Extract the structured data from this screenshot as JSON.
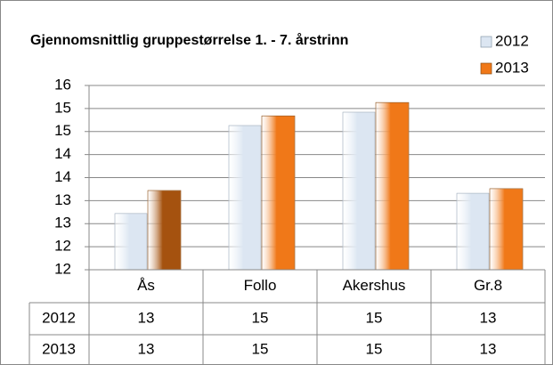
{
  "chart_data": {
    "type": "bar",
    "title": "Gjennomsnittlig gruppestørrelse 1. - 7. årstrinn",
    "categories": [
      "Ås",
      "Follo",
      "Akershus",
      "Gr.8"
    ],
    "series": [
      {
        "name": "2012",
        "color": "#dce6f2",
        "values": [
          12.72,
          14.63,
          14.92,
          13.16
        ],
        "value_labels": [
          "13",
          "15",
          "15",
          "13"
        ]
      },
      {
        "name": "2013",
        "color": "#f07818",
        "colors": [
          "#a5520f",
          "#f07818",
          "#f07818",
          "#f07818"
        ],
        "values": [
          13.22,
          14.84,
          15.13,
          13.26
        ],
        "value_labels": [
          "13",
          "15",
          "15",
          "13"
        ]
      }
    ],
    "ylim": [
      11.5,
      15.5
    ],
    "yticks": [
      {
        "value": 11.5,
        "label": "12"
      },
      {
        "value": 12,
        "label": "12"
      },
      {
        "value": 12.5,
        "label": "13"
      },
      {
        "value": 13,
        "label": "13"
      },
      {
        "value": 13.5,
        "label": "14"
      },
      {
        "value": 14,
        "label": "14"
      },
      {
        "value": 14.5,
        "label": "15"
      },
      {
        "value": 15,
        "label": "15"
      },
      {
        "value": 15.5,
        "label": "16"
      }
    ],
    "grid": true,
    "legend": "top-right",
    "data_table": true
  }
}
